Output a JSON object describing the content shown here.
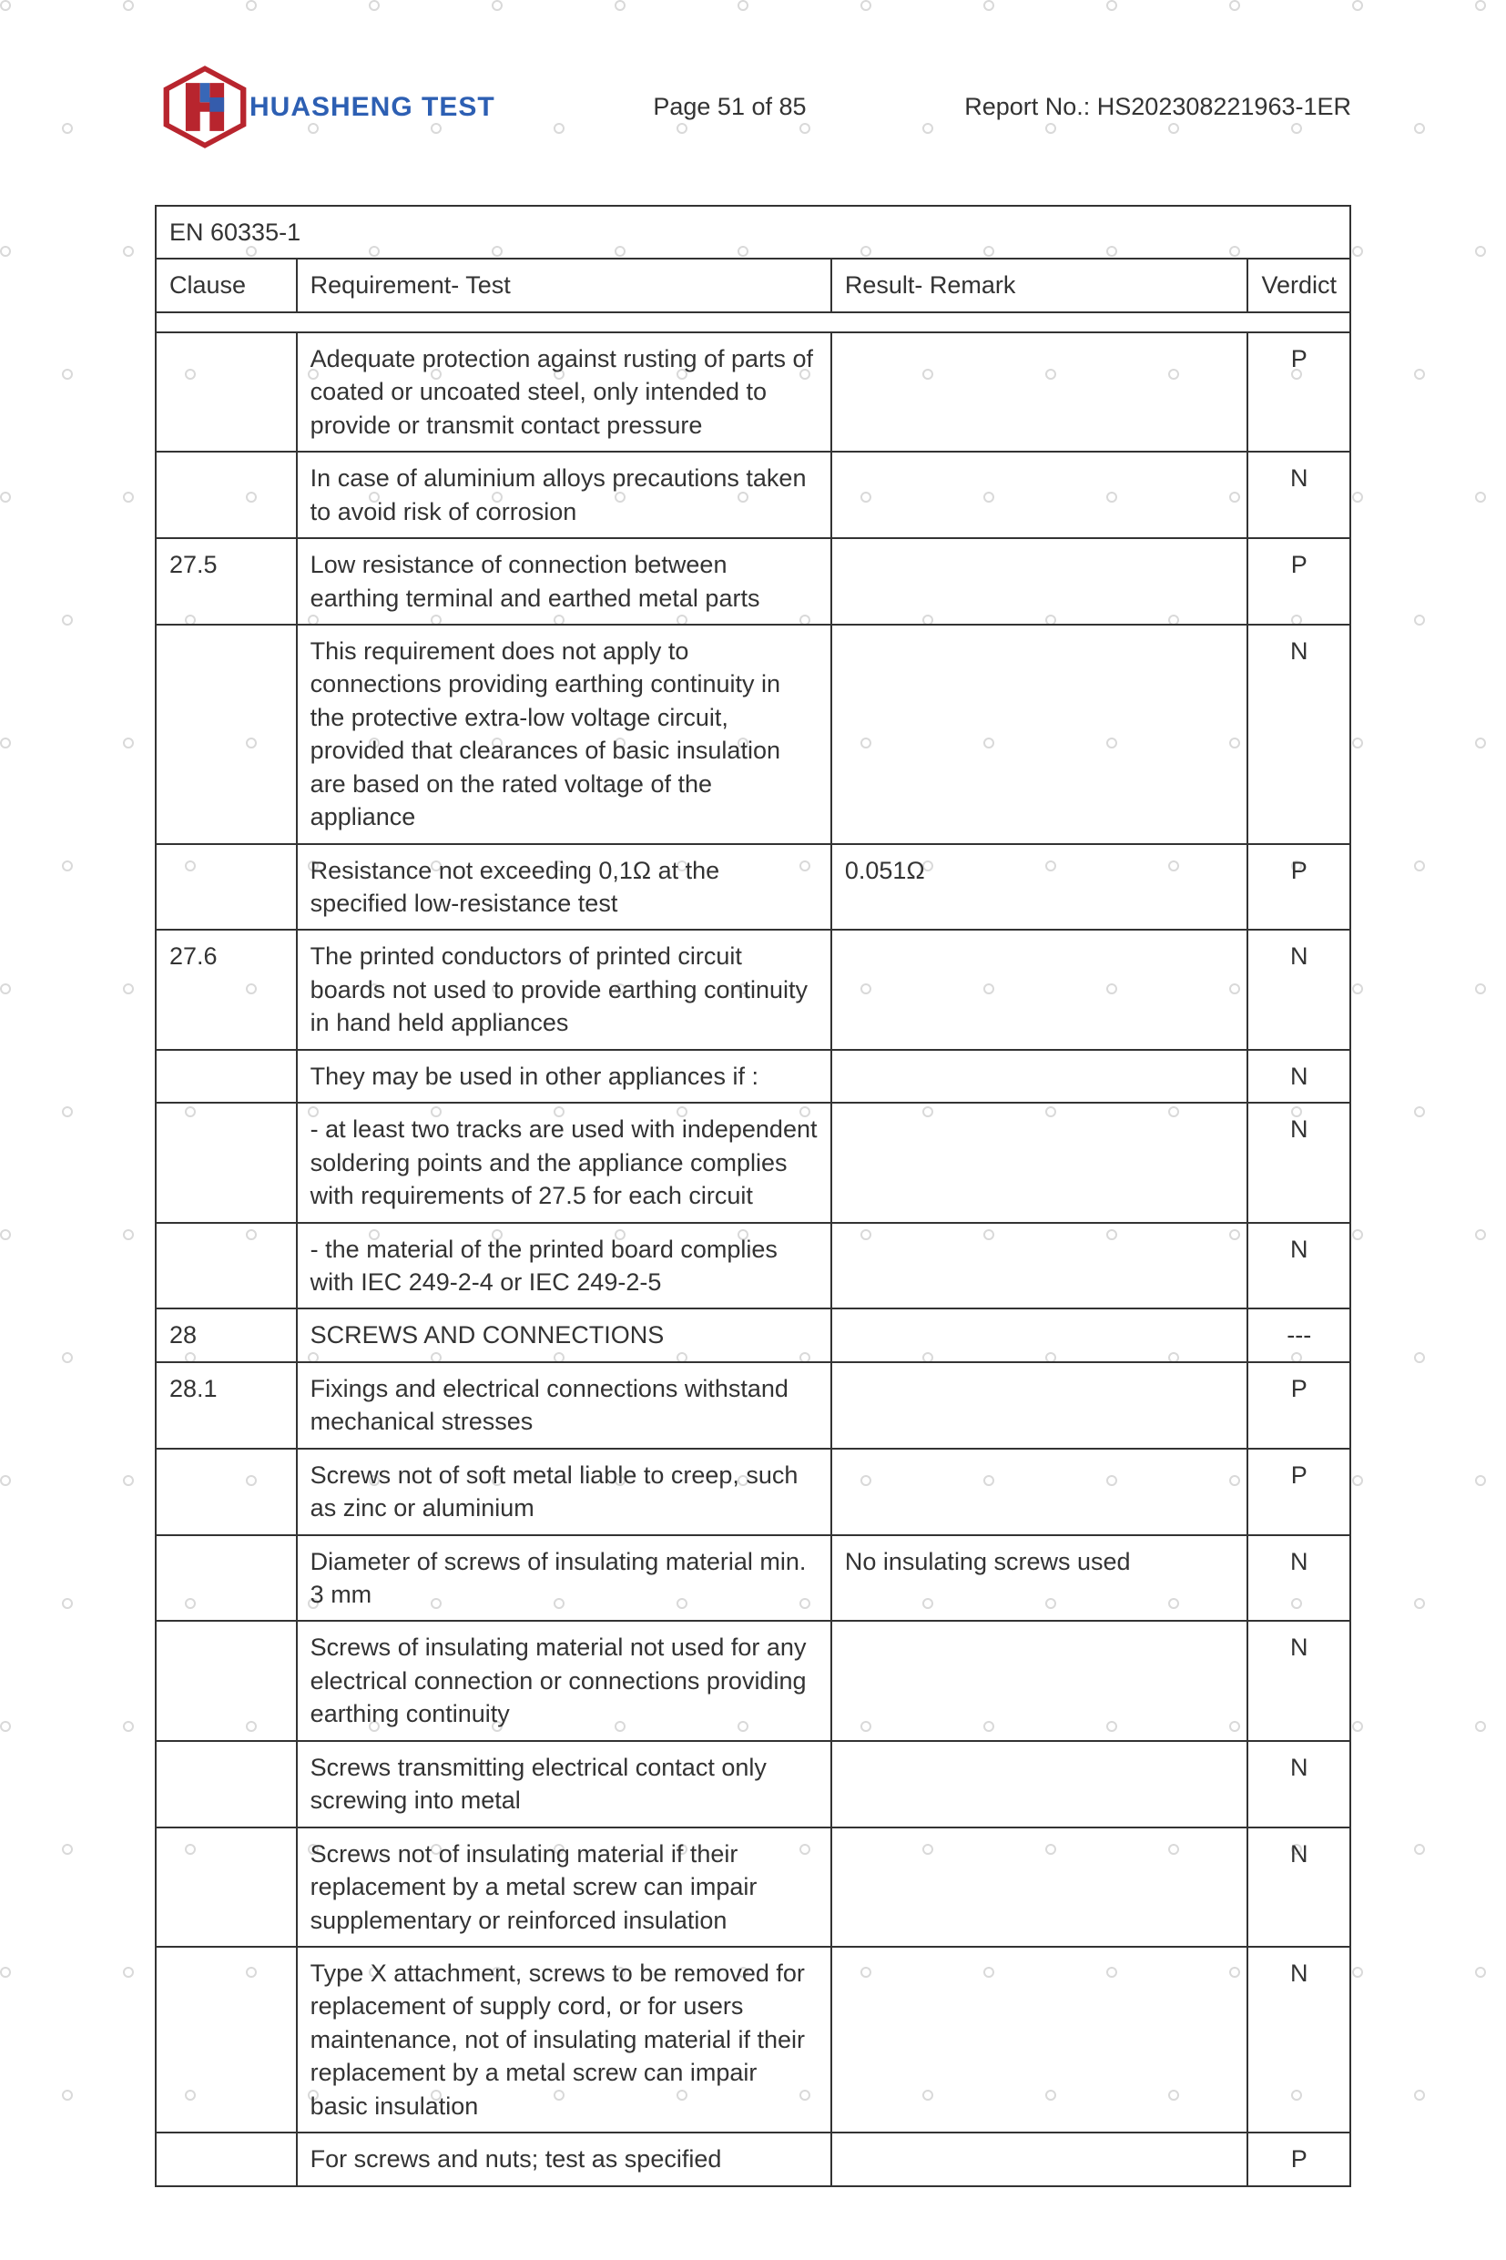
{
  "header": {
    "brand": "HUASHENG TEST",
    "page_label": "Page 51 of 85",
    "report_label": "Report No.: HS202308221963-1ER",
    "logo_colors": {
      "red": "#b8252e",
      "blue": "#2d5fb3"
    }
  },
  "table": {
    "standard_title": "EN 60335-1",
    "columns": {
      "clause": "Clause",
      "requirement": "Requirement- Test",
      "result": "Result- Remark",
      "verdict": "Verdict"
    },
    "rows": [
      {
        "clause": "",
        "req": "Adequate protection against rusting of parts of coated or uncoated steel, only intended to provide or transmit contact pressure",
        "res": "",
        "ver": "P"
      },
      {
        "clause": "",
        "req": "In case of aluminium alloys precautions taken to avoid risk of corrosion",
        "res": "",
        "ver": "N"
      },
      {
        "clause": "27.5",
        "req": "Low resistance of connection between earthing terminal and earthed metal parts",
        "res": "",
        "ver": "P"
      },
      {
        "clause": "",
        "req": "This requirement does not apply to connections providing earthing continuity in the protective extra-low voltage circuit, provided that clearances of basic insulation are based on the rated voltage of the appliance",
        "res": "",
        "ver": "N"
      },
      {
        "clause": "",
        "req": "Resistance not exceeding 0,1Ω at the specified low-resistance test",
        "res": "0.051Ω",
        "ver": "P"
      },
      {
        "clause": "27.6",
        "req": "The printed conductors of printed circuit boards not used to provide earthing continuity in hand held appliances",
        "res": "",
        "ver": "N"
      },
      {
        "clause": "",
        "req": "They may be used in other appliances if :",
        "res": "",
        "ver": "N"
      },
      {
        "clause": "",
        "req": "- at least two tracks are used with independent soldering points and the appliance complies with requirements of 27.5 for each circuit",
        "res": "",
        "ver": "N"
      },
      {
        "clause": "",
        "req": "- the material of the printed board complies with IEC 249-2-4 or IEC 249-2-5",
        "res": "",
        "ver": "N"
      },
      {
        "clause": "28",
        "req": "SCREWS AND CONNECTIONS",
        "res": "",
        "ver": "---"
      },
      {
        "clause": "28.1",
        "req": "Fixings and electrical connections withstand mechanical stresses",
        "res": "",
        "ver": "P"
      },
      {
        "clause": "",
        "req": "Screws not of soft metal liable to creep, such as zinc or aluminium",
        "res": "",
        "ver": "P"
      },
      {
        "clause": "",
        "req": "Diameter of screws of insulating material min. 3 mm",
        "res": "No insulating screws used",
        "ver": "N"
      },
      {
        "clause": "",
        "req": "Screws of insulating material not used for any electrical connection or connections providing earthing continuity",
        "res": "",
        "ver": "N"
      },
      {
        "clause": "",
        "req": "Screws transmitting electrical contact only screwing into metal",
        "res": "",
        "ver": "N"
      },
      {
        "clause": "",
        "req": "Screws not of insulating material if their replacement by a metal screw can impair supplementary or reinforced insulation",
        "res": "",
        "ver": "N"
      },
      {
        "clause": "",
        "req": "Type X attachment, screws to be removed for replacement of supply cord, or for users maintenance, not of insulating material if their replacement by a metal screw can impair basic insulation",
        "res": "",
        "ver": "N"
      },
      {
        "clause": "",
        "req": "For screws and nuts; test as specified",
        "res": "",
        "ver": "P"
      }
    ]
  },
  "style": {
    "text_color": "#333333",
    "border_color": "#333333",
    "brand_blue": "#2d5fb3",
    "watermark_color": "#d9d9d9",
    "font_size_pt": 20
  }
}
